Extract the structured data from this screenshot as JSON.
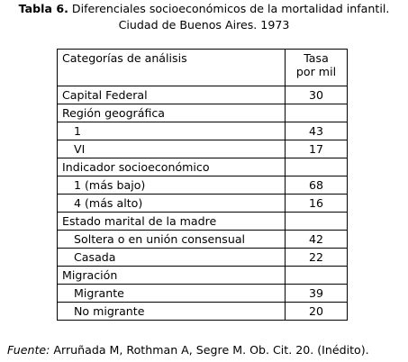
{
  "caption": {
    "label": "Tabla 6.",
    "title_line1": "Diferenciales socioeconómicos de la mortalidad infantil.",
    "title_line2": "Ciudad de Buenos Aires. 1973"
  },
  "table": {
    "header": {
      "category": "Categorías de análisis",
      "rate_line1": "Tasa",
      "rate_line2": "por mil"
    },
    "rows": [
      {
        "label": "Capital Federal",
        "value": "30"
      },
      {
        "label": "Región geográfica",
        "value": ""
      },
      {
        "label": "1",
        "value": "43"
      },
      {
        "label": "VI",
        "value": "17"
      },
      {
        "label": "Indicador socioeconómico",
        "value": ""
      },
      {
        "label": "1 (más bajo)",
        "value": "68"
      },
      {
        "label": "4 (más alto)",
        "value": "16"
      },
      {
        "label": "Estado marital de la madre",
        "value": ""
      },
      {
        "label": "Soltera o en unión consensual",
        "value": "42"
      },
      {
        "label": "Casada",
        "value": "22"
      },
      {
        "label": "Migración",
        "value": ""
      },
      {
        "label": "Migrante",
        "value": "39"
      },
      {
        "label": "No migrante",
        "value": "20"
      }
    ]
  },
  "source": {
    "label": "Fuente:",
    "text": "Arruñada M, Rothman A, Segre M. Ob. Cit. 20.  (Inédito)."
  }
}
